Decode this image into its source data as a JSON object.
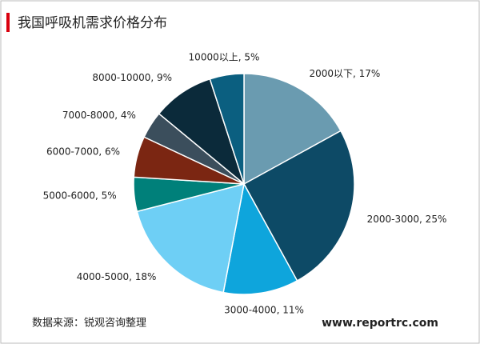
{
  "chart_data": {
    "type": "pie",
    "title": "我国呼吸机需求价格分布",
    "values": [
      17,
      25,
      11,
      18,
      5,
      6,
      4,
      9,
      5
    ],
    "value_labels": [
      "2000以下, 17%",
      "2000-3000, 25%",
      "3000-4000, 11%",
      "4000-5000, 18%",
      "5000-6000, 5%",
      "6000-7000, 6%",
      "7000-8000, 4%",
      "8000-10000, 9%",
      "10000以上, 5%"
    ],
    "colors": [
      "#6a9bb0",
      "#0d4a66",
      "#0ea5dc",
      "#6ecff5",
      "#00807a",
      "#7b2612",
      "#3b4e5c",
      "#0b2a3a",
      "#0b5f80"
    ],
    "source": "数据来源：锐观咨询整理",
    "website": "www.reportrc.com"
  }
}
